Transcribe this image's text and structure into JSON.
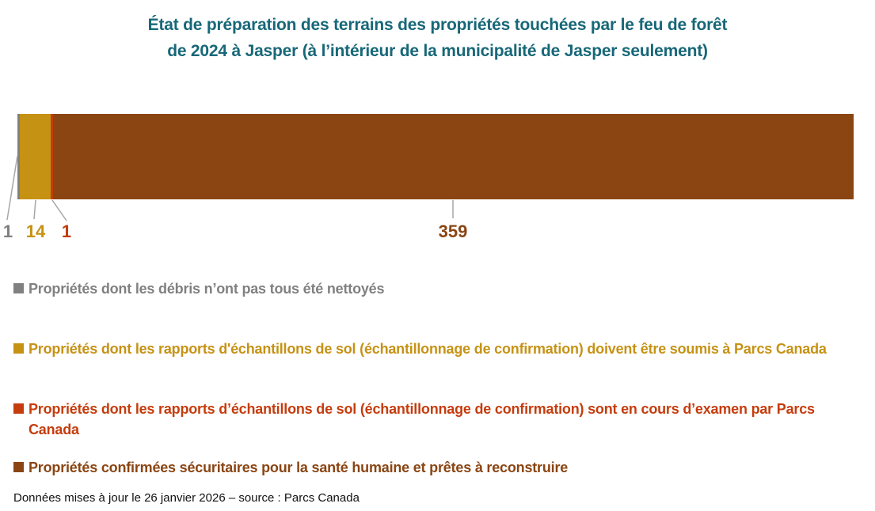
{
  "title": {
    "line1": "État de préparation des terrains des propriétés touchées par le feu de forêt",
    "line2": "de 2024 à Jasper (à l’intérieur de la municipalité de Jasper seulement)"
  },
  "footer": {
    "text": "Données mises à jour le 26 janvier 2026 – source : Parcs Canada"
  },
  "colors": {
    "title": "#176778",
    "debris_gray": "#808080",
    "soil_to_submit_gold": "#C69214",
    "soil_in_review_red": "#C53C0D",
    "safe_brown": "#8A4513",
    "leader_line": "#A6A6A6",
    "background": "#FFFFFF"
  },
  "chart_data": {
    "type": "bar",
    "subtype": "horizontal-stacked-single-bar",
    "title": "État de préparation des terrains des propriétés touchées par le feu de forêt de 2024 à Jasper (à l’intérieur de la municipalité de Jasper seulement)",
    "total": 375,
    "legend_position": "bottom",
    "grid": false,
    "axes_visible": false,
    "data_labels_shown": true,
    "series": [
      {
        "name": "Propriétés dont les débris n’ont pas tous été nettoyés",
        "value": 1,
        "color": "#808080"
      },
      {
        "name": "Propriétés dont les rapports d'échantillons de sol (échantillonnage de confirmation) doivent être soumis à Parcs Canada",
        "value": 14,
        "color": "#C69214"
      },
      {
        "name": "Propriétés dont les rapports d’échantillons de sol (échantillonnage de confirmation) sont en cours d’examen par Parcs Canada",
        "value": 1,
        "color": "#C53C0D"
      },
      {
        "name": "Propriétés confirmées sécuritaires pour la santé humaine et prêtes à reconstruire",
        "value": 359,
        "color": "#8A4513"
      }
    ]
  }
}
